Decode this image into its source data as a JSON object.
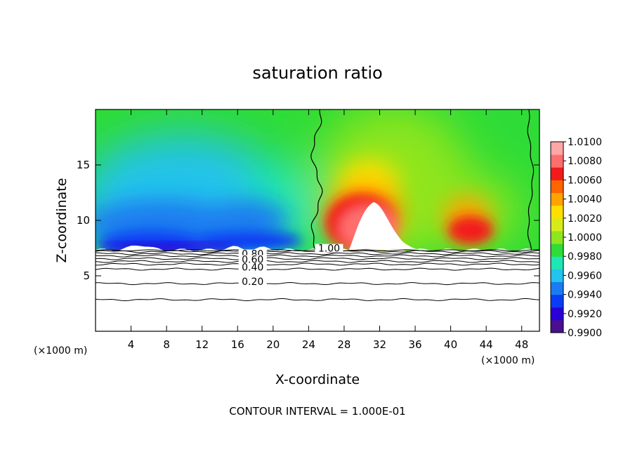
{
  "chart_data": {
    "type": "heatmap",
    "title": "saturation ratio",
    "xlabel": "X-coordinate",
    "ylabel": "Z-coordinate",
    "x_unit_left": "(×1000 m)",
    "x_unit_right": "(×1000 m)",
    "xlim": [
      0,
      50
    ],
    "ylim": [
      0,
      20
    ],
    "x_ticks": [
      4,
      8,
      12,
      16,
      20,
      24,
      28,
      32,
      36,
      40,
      44,
      48
    ],
    "y_ticks": [
      5,
      10,
      15
    ],
    "colorbar": {
      "min": 0.99,
      "max": 1.01,
      "labels": [
        "1.0100",
        "1.0080",
        "1.0060",
        "1.0040",
        "1.0020",
        "1.0000",
        "0.9980",
        "0.9960",
        "0.9940",
        "0.9920",
        "0.9900"
      ],
      "colors": [
        "#4a0f8f",
        "#2a00d6",
        "#0b3cf5",
        "#1a7cf0",
        "#22c3ec",
        "#1ee6b4",
        "#2fdc37",
        "#8fe51f",
        "#d6ec1a",
        "#ffdf00",
        "#ffa300",
        "#ff6400",
        "#f21a1a",
        "#ff6e6e",
        "#ffa6a6"
      ]
    },
    "contour_labels": [
      {
        "text": "1.00",
        "x": 26.3,
        "z": 7.3
      },
      {
        "text": "0.80",
        "x": 17.7,
        "z": 6.8
      },
      {
        "text": "0.60",
        "x": 17.7,
        "z": 6.3
      },
      {
        "text": "0.40",
        "x": 17.7,
        "z": 5.6
      },
      {
        "text": "0.20",
        "x": 17.7,
        "z": 4.3
      }
    ],
    "contour_interval": "CONTOUR INTERVAL = 1.000E-01"
  }
}
